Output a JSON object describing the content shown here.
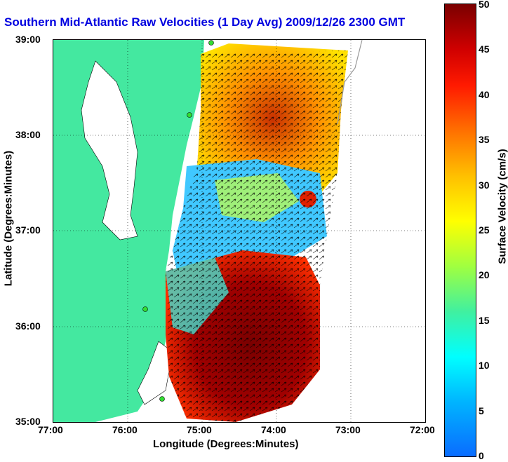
{
  "title": "Southern Mid-Atlantic Raw Velocities (1 Day Avg) 2009/12/26 2300 GMT",
  "xlabel": "Longitude (Degrees:Minutes)",
  "ylabel": "Latitude (Degrees:Minutes)",
  "xticks": [
    "77:00",
    "76:00",
    "75:00",
    "74:00",
    "73:00",
    "72:00"
  ],
  "yticks": [
    "39:00",
    "38:00",
    "37:00",
    "36:00",
    "35:00"
  ],
  "colorbar": {
    "label": "Surface Velocity (cm/s)",
    "ticks": [
      "0",
      "5",
      "10",
      "15",
      "20",
      "25",
      "30",
      "35",
      "40",
      "45",
      "50"
    ]
  },
  "colors": {
    "land": "#44e8a0",
    "title": "#0000e0",
    "station": "#33dd33"
  }
}
